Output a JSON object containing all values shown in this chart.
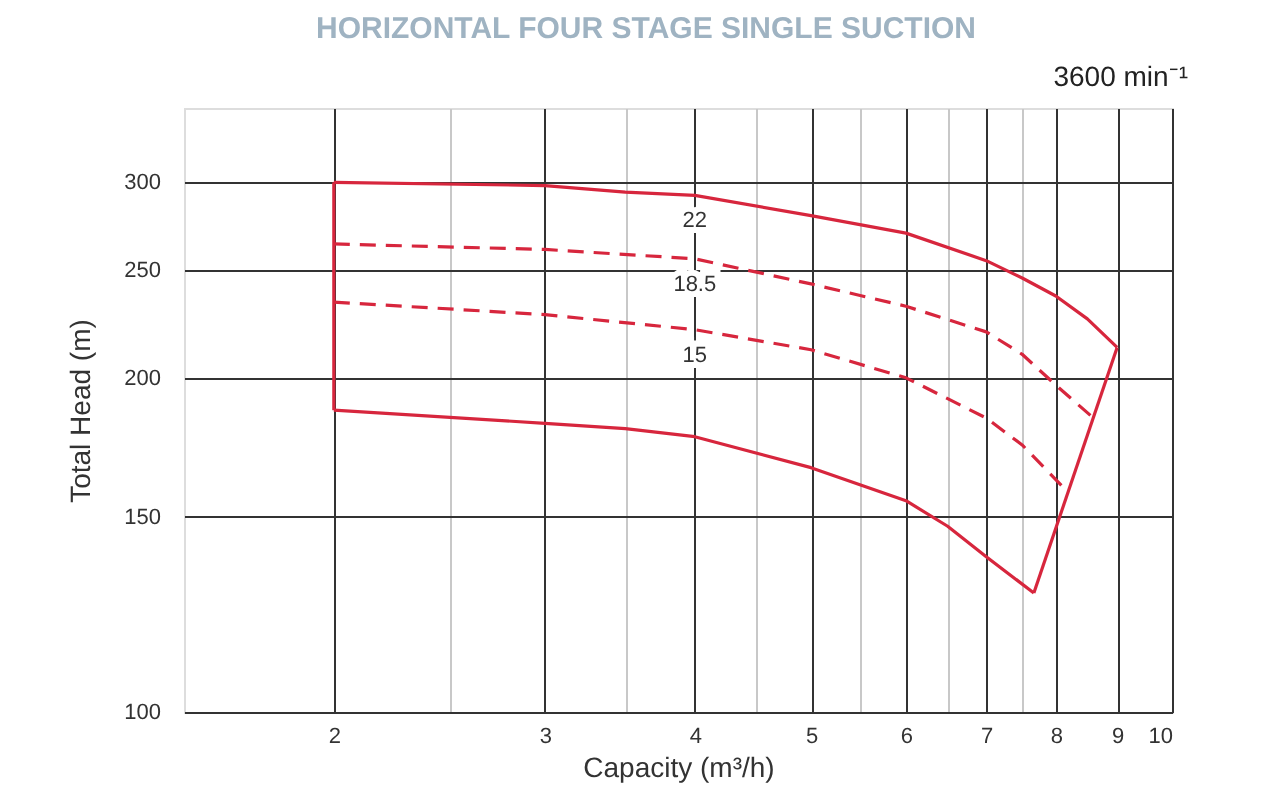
{
  "chart_data": {
    "type": "line",
    "title": "HORIZONTAL FOUR STAGE SINGLE SUCTION",
    "subtitle": "3600 min⁻¹",
    "xlabel": "Capacity (m³/h)",
    "ylabel": "Total Head (m)",
    "log": "xy",
    "xlim": [
      1.5,
      10
    ],
    "ylim": [
      100,
      350
    ],
    "xticks": [
      2,
      {
        "value": 2.5,
        "label": null
      },
      3,
      {
        "value": 3.5,
        "label": null
      },
      4,
      {
        "value": 4.5,
        "label": null
      },
      5,
      {
        "value": 5.5,
        "label": null
      },
      6,
      {
        "value": 6.5,
        "label": null
      },
      7,
      {
        "value": 7.5,
        "label": null
      },
      8,
      9,
      10
    ],
    "yticks": [
      100,
      150,
      200,
      250,
      300
    ],
    "grid": true,
    "marker": "none",
    "series": [
      {
        "name": "22",
        "color": "#d7263d",
        "line_style": "solid",
        "x": [
          2,
          3,
          3.5,
          4,
          5,
          6,
          7,
          7.5,
          8,
          8.5,
          9
        ],
        "values": [
          300,
          298,
          294,
          292,
          280,
          270,
          255,
          246,
          237,
          226,
          213
        ]
      },
      {
        "name": "18.5",
        "color": "#d7263d",
        "line_style": "dashed",
        "x": [
          2,
          3,
          4,
          5,
          6,
          7,
          7.5,
          8,
          8.6
        ],
        "values": [
          264,
          261,
          256,
          243,
          232,
          220,
          210,
          197,
          184
        ]
      },
      {
        "name": "15",
        "color": "#d7263d",
        "line_style": "dashed",
        "x": [
          2,
          3,
          4,
          5,
          6,
          7,
          7.5,
          8.18
        ],
        "values": [
          234,
          228,
          221,
          212,
          200,
          184,
          174,
          158
        ]
      },
      {
        "color": "#d7263d",
        "line_style": "solid",
        "x": [
          2,
          3,
          3.5,
          4,
          5,
          6,
          6.5,
          7,
          7.67
        ],
        "values": [
          187,
          182,
          180,
          177,
          166,
          155,
          147,
          138,
          128
        ]
      },
      {
        "color": "#d7263d",
        "line_style": "solid",
        "x": [
          7.67,
          9
        ],
        "values": [
          128,
          213
        ]
      },
      {
        "color": "#d7263d",
        "line_style": "solid",
        "x": [
          2,
          2
        ],
        "values": [
          187,
          300
        ]
      }
    ]
  }
}
